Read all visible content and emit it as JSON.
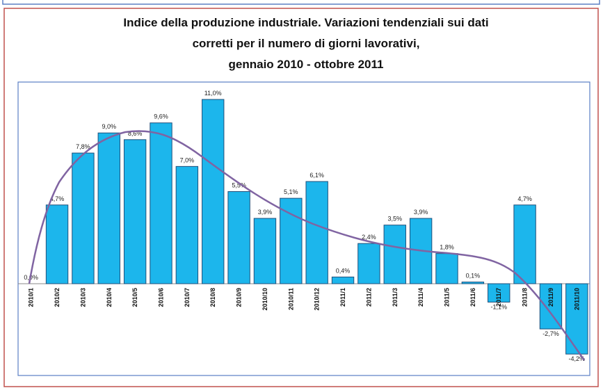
{
  "chart_data": {
    "type": "bar",
    "title": "Indice della produzione industriale. Variazioni tendenziali sui dati",
    "subtitle": "corretti per il numero di giorni lavorativi,",
    "period": "gennaio 2010 - ottobre 2011",
    "categories": [
      "2010/1",
      "2010/2",
      "2010/3",
      "2010/4",
      "2010/5",
      "2010/6",
      "2010/7",
      "2010/8",
      "2010/9",
      "2010/10",
      "2010/11",
      "2010/12",
      "2011/1",
      "2011/2",
      "2011/3",
      "2011/4",
      "2011/5",
      "2011/6",
      "2011/7",
      "2011/8",
      "2011/9",
      "2011/10"
    ],
    "values": [
      0.0,
      4.7,
      7.8,
      9.0,
      8.6,
      9.6,
      7.0,
      11.0,
      5.5,
      3.9,
      5.1,
      6.1,
      0.4,
      2.4,
      3.5,
      3.9,
      1.8,
      0.1,
      -1.1,
      4.7,
      -2.7,
      -4.2
    ],
    "value_labels": [
      "0,0%",
      "4,7%",
      "7,8%",
      "9,0%",
      "8,6%",
      "9,6%",
      "7,0%",
      "11,0%",
      "5,5%",
      "3,9%",
      "5,1%",
      "6,1%",
      "0,4%",
      "2,4%",
      "3,5%",
      "3,9%",
      "1,8%",
      "0,1%",
      "-1,1%",
      "4,7%",
      "-2,7%",
      "-4,2%"
    ],
    "color": "#1cb6ec"
  }
}
